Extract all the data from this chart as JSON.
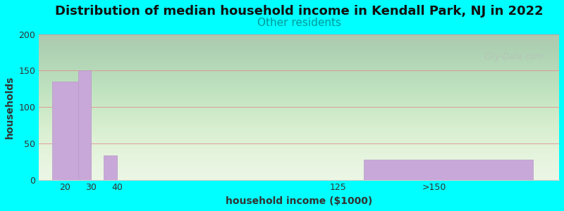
{
  "title": "Distribution of median household income in Kendall Park, NJ in 2022",
  "subtitle": "Other residents",
  "subtitle_color": "#009999",
  "xlabel": "household income ($1000)",
  "ylabel": "households",
  "background_color": "#00ffff",
  "bar_color": "#c8a8d8",
  "bar_edge_color": "#b898c8",
  "watermark": "City-Data.com",
  "ylim": [
    0,
    200
  ],
  "yticks": [
    0,
    50,
    100,
    150,
    200
  ],
  "title_fontsize": 13,
  "subtitle_fontsize": 11,
  "label_fontsize": 10,
  "tick_fontsize": 9,
  "bar_lefts": [
    15,
    25,
    35,
    110,
    135
  ],
  "bar_widths": [
    10,
    5,
    5,
    0,
    65
  ],
  "bar_heights": [
    135,
    150,
    33,
    0,
    28
  ],
  "xtick_positions": [
    20,
    30,
    40,
    125,
    162
  ],
  "xtick_labels": [
    "20",
    "30",
    "40",
    "125",
    ">150"
  ],
  "xlim": [
    10,
    210
  ]
}
